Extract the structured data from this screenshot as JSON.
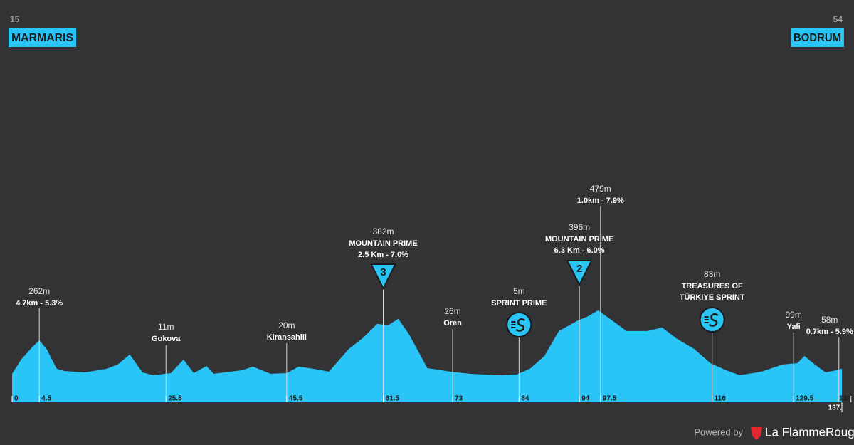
{
  "chart_data": {
    "type": "area",
    "color": "#29c5f6",
    "start": {
      "number": 15,
      "name": "MARMARIS"
    },
    "finish": {
      "number": 54,
      "name": "BODRUM"
    },
    "x": [
      0,
      1.5,
      3.3,
      4.5,
      5.7,
      7.4,
      8.6,
      12.1,
      15.7,
      17.5,
      19.5,
      21.6,
      23.4,
      26.3,
      28.4,
      30.1,
      32.2,
      33.4,
      38.1,
      39.9,
      42.8,
      45.5,
      47.5,
      49.9,
      52.5,
      55.8,
      58.1,
      60.5,
      62.3,
      64.0,
      65.8,
      68.8,
      72.6,
      75.8,
      80.5,
      83.6,
      85.8,
      88.2,
      90.6,
      93.8,
      95.3,
      97.1,
      99.4,
      101.8,
      105.3,
      107.7,
      110.0,
      113.0,
      115.7,
      118.3,
      120.6,
      124.2,
      127.7,
      130.1,
      131.3,
      133.0,
      134.8,
      136.6,
      137.5
    ],
    "values": [
      11,
      117,
      207,
      260,
      196,
      48,
      32,
      21,
      48,
      80,
      154,
      21,
      0,
      16,
      117,
      16,
      69,
      11,
      37,
      64,
      11,
      16,
      64,
      48,
      27,
      196,
      276,
      382,
      371,
      419,
      302,
      53,
      27,
      11,
      0,
      5,
      48,
      143,
      329,
      408,
      435,
      482,
      408,
      329,
      329,
      355,
      276,
      196,
      90,
      37,
      0,
      27,
      80,
      90,
      143,
      80,
      21,
      37,
      48
    ],
    "xlim": [
      0,
      137.5
    ],
    "xticks": [
      0,
      4.5,
      25.5,
      45.5,
      61.5,
      73,
      84,
      94,
      97.5,
      116,
      129.5,
      139,
      {
        "value": 137.5,
        "label": "137."
      }
    ],
    "annotations": [
      {
        "x": 4.5,
        "elevation": "262m",
        "lines": [
          "4.7km - 5.3%"
        ]
      },
      {
        "x": 25.5,
        "elevation": "11m",
        "lines": [
          "Gokova"
        ]
      },
      {
        "x": 45.5,
        "elevation": "20m",
        "lines": [
          "Kiransahili"
        ]
      },
      {
        "x": 61.5,
        "elevation": "382m",
        "lines": [
          "MOUNTAIN PRIME",
          "2.5 Km - 7.0%"
        ],
        "category": 3
      },
      {
        "x": 73,
        "elevation": "26m",
        "lines": [
          "Oren"
        ]
      },
      {
        "x": 84,
        "elevation": "5m",
        "lines": [
          "SPRINT PRIME"
        ],
        "marker": "sprint"
      },
      {
        "x": 94,
        "elevation": "396m",
        "lines": [
          "MOUNTAIN PRIME",
          "6.3 Km - 6.0%"
        ],
        "category": 2
      },
      {
        "x": 97.5,
        "elevation": "479m",
        "lines": [
          "1.0km - 7.9%"
        ]
      },
      {
        "x": 116,
        "elevation": "83m",
        "lines": [
          "TREASURES OF",
          "TÜRKIYE SPRINT"
        ],
        "marker": "sprint"
      },
      {
        "x": 129.5,
        "elevation": "99m",
        "lines": [
          "Yali"
        ]
      },
      {
        "x": 137,
        "elevation": "58m",
        "lines": [
          "0.7km - 5.9%"
        ]
      }
    ],
    "powered_by": "Powered by",
    "brand": "La FlammeRouge"
  }
}
